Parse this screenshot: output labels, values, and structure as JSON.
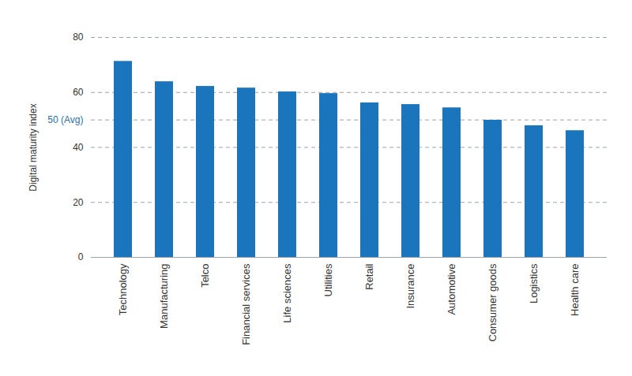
{
  "chart_data": {
    "type": "bar",
    "y_label": "Digital maturity index",
    "categories": [
      "Technology",
      "Manufacturing",
      "Telco",
      "Financial services",
      "Life sciences",
      "Utilities",
      "Retail",
      "Insurance",
      "Automotive",
      "Consumer goods",
      "Logistics",
      "Health care"
    ],
    "values": [
      71.3,
      63.9,
      62.2,
      61.6,
      60.2,
      59.6,
      56.2,
      55.6,
      54.4,
      49.9,
      47.9,
      46.1
    ],
    "color": "#1b75bc",
    "ylim": [
      0,
      80
    ],
    "yticks": [
      0,
      20,
      40,
      {
        "value": 50,
        "label": "50 (Avg)"
      },
      60,
      80
    ],
    "grid": true
  }
}
